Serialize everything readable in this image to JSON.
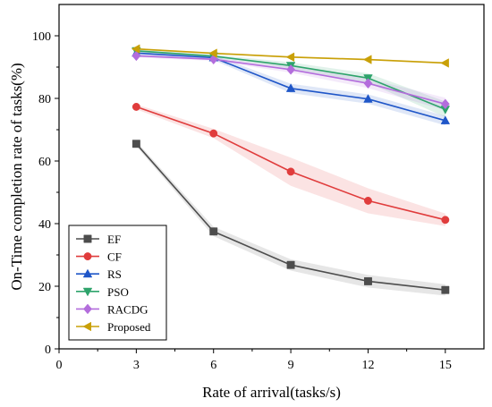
{
  "chart_data": {
    "type": "line",
    "title": "",
    "xlabel": "Rate of arrival(tasks/s)",
    "ylabel": "On-Time completion rate of tasks(%)",
    "xlim": [
      0,
      16.5
    ],
    "ylim": [
      0,
      110
    ],
    "xticks": [
      0,
      3,
      6,
      9,
      12,
      15
    ],
    "yticks": [
      0,
      20,
      40,
      60,
      80,
      100
    ],
    "x": [
      3,
      6,
      9,
      12,
      15
    ],
    "grid": false,
    "legend_position": "bottom-left",
    "series": [
      {
        "name": "EF",
        "color": "#4d4d4d",
        "marker": "square",
        "values": [
          65.5,
          37.5,
          26.8,
          21.6,
          18.8
        ],
        "band": [
          0.8,
          1.5,
          1.8,
          2.0,
          1.8
        ]
      },
      {
        "name": "CF",
        "color": "#e03c3c",
        "marker": "circle",
        "values": [
          77.3,
          68.8,
          56.6,
          47.3,
          41.2
        ],
        "band": [
          0.8,
          1.5,
          4.5,
          4.0,
          2.0
        ]
      },
      {
        "name": "RS",
        "color": "#1f56c8",
        "marker": "triangle-up",
        "values": [
          94.5,
          93.0,
          83.2,
          79.8,
          72.9
        ],
        "band": [
          0.5,
          0.8,
          1.5,
          1.5,
          1.5
        ]
      },
      {
        "name": "PSO",
        "color": "#2ea36b",
        "marker": "triangle-down",
        "values": [
          95.2,
          93.5,
          90.5,
          86.5,
          76.5
        ],
        "band": [
          0.5,
          0.5,
          1.0,
          1.5,
          2.5
        ]
      },
      {
        "name": "RACDG",
        "color": "#b36ddc",
        "marker": "diamond",
        "values": [
          93.6,
          92.5,
          89.2,
          84.8,
          78.2
        ],
        "band": [
          0.5,
          0.5,
          1.0,
          1.5,
          2.0
        ]
      },
      {
        "name": "Proposed",
        "color": "#c9a008",
        "marker": "triangle-left",
        "values": [
          95.8,
          94.4,
          93.2,
          92.4,
          91.3
        ],
        "band": [
          0.3,
          0.3,
          0.3,
          0.3,
          0.3
        ]
      }
    ]
  }
}
